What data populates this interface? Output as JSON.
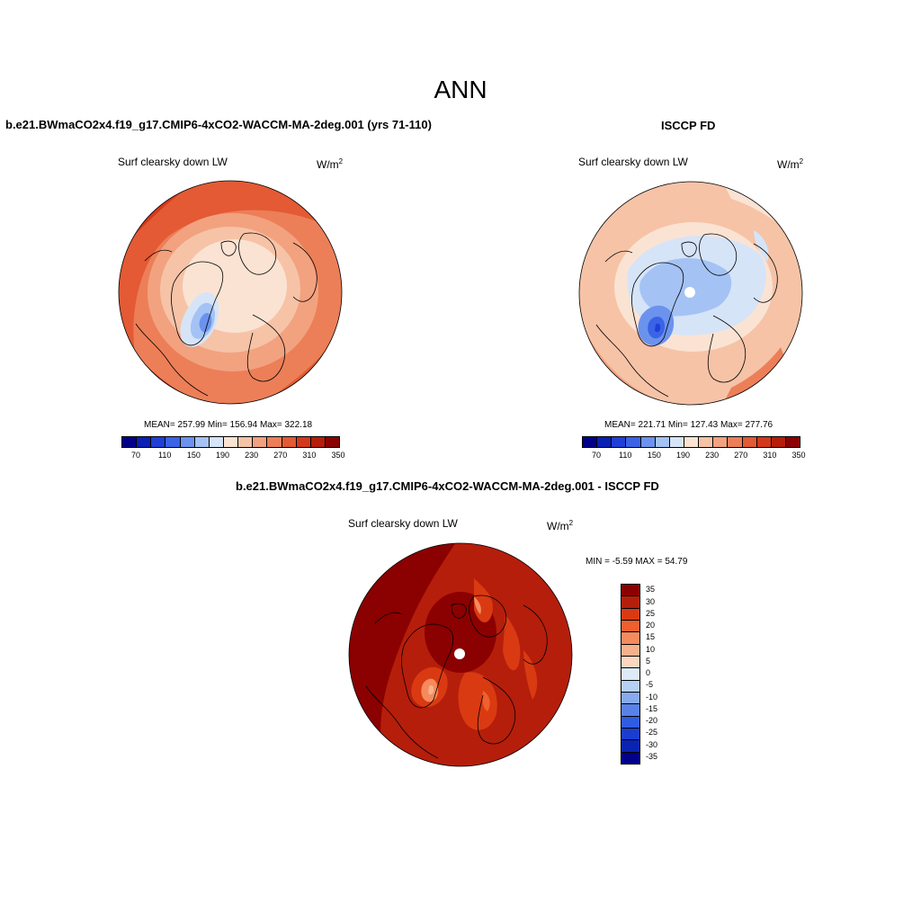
{
  "main_title": "ANN",
  "panels": [
    {
      "title": "b.e21.BWmaCO2x4.f19_g17.CMIP6-4xCO2-WACCM-MA-2deg.001 (yrs 71-110)",
      "variable": "Surf clearsky down LW",
      "units": "W/m",
      "units_exp": "2",
      "stats": "MEAN= 257.99  Min= 156.94  Max= 322.18"
    },
    {
      "title": "ISCCP FD",
      "variable": "Surf clearsky down LW",
      "units": "W/m",
      "units_exp": "2",
      "stats": "MEAN= 221.71  Min= 127.43  Max= 277.76"
    },
    {
      "title": "b.e21.BWmaCO2x4.f19_g17.CMIP6-4xCO2-WACCM-MA-2deg.001 - ISCCP FD",
      "variable": "Surf clearsky down LW",
      "units": "W/m",
      "units_exp": "2",
      "stats": "MIN =  -5.59 MAX =  54.79"
    }
  ],
  "abs_colorbar": {
    "colors": [
      "#00008b",
      "#0a1fb4",
      "#1f3fd6",
      "#3a63e6",
      "#6b93ee",
      "#a4c2f4",
      "#d6e4f8",
      "#fbe3d3",
      "#f6c3a7",
      "#f2a27f",
      "#ec7f58",
      "#e35a34",
      "#d4381b",
      "#b51e0b",
      "#8b0000"
    ],
    "labels": [
      "70",
      "110",
      "150",
      "190",
      "230",
      "270",
      "310",
      "350"
    ]
  },
  "diff_colorbar": {
    "colors": [
      "#8b0000",
      "#b51e0b",
      "#d93a12",
      "#f0602e",
      "#f58a5d",
      "#f8b08c",
      "#fcd6bf",
      "#ddeaf8",
      "#b6cff5",
      "#87aaf0",
      "#5882e8",
      "#2f5ce0",
      "#1a3dcf",
      "#0a23b0",
      "#00008b"
    ],
    "labels": [
      "35",
      "30",
      "25",
      "20",
      "15",
      "10",
      "5",
      "0",
      "-5",
      "-10",
      "-15",
      "-20",
      "-25",
      "-30",
      "-35"
    ]
  }
}
